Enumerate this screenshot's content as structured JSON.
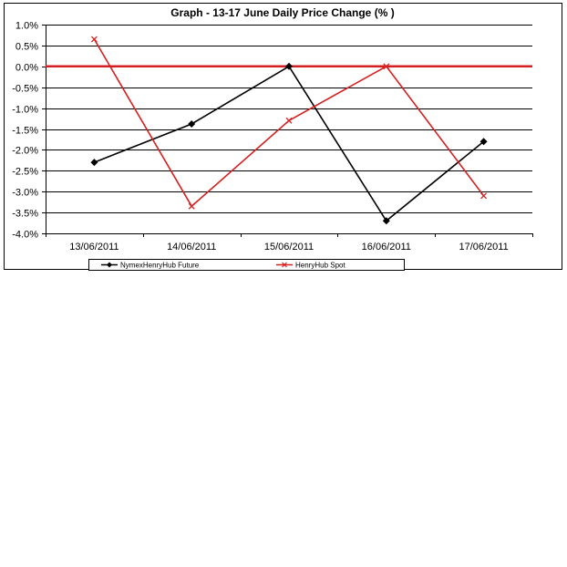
{
  "chart_data": {
    "type": "line",
    "title": "Graph  -  13-17 June Daily Price Change (% )",
    "xlabel": "",
    "ylabel": "",
    "categories": [
      "13/06/2011",
      "14/06/2011",
      "15/06/2011",
      "16/06/2011",
      "17/06/2011"
    ],
    "ylim": [
      -0.04,
      0.01
    ],
    "ytick_values": [
      0.01,
      0.005,
      0.0,
      -0.005,
      -0.01,
      -0.015,
      -0.02,
      -0.025,
      -0.03,
      -0.035,
      -0.04
    ],
    "ytick_labels": [
      "1.0%",
      "0.5%",
      "0.0%",
      "-0.5%",
      "-1.0%",
      "-1.5%",
      "-2.0%",
      "-2.5%",
      "-3.0%",
      "-3.5%",
      "-4.0%"
    ],
    "grid": true,
    "legend_position": "bottom",
    "reference_line": {
      "value": 0.0,
      "color": "#d42020"
    },
    "series": [
      {
        "name": "NymexHenryHub Future",
        "values": [
          -0.023,
          -0.0138,
          0.0,
          -0.037,
          -0.018
        ],
        "color": "#000000",
        "marker": "diamond"
      },
      {
        "name": "HenryHub Spot",
        "values": [
          0.0065,
          -0.0335,
          -0.013,
          0.0,
          -0.031
        ],
        "color": "#d42020",
        "marker": "x"
      }
    ]
  }
}
